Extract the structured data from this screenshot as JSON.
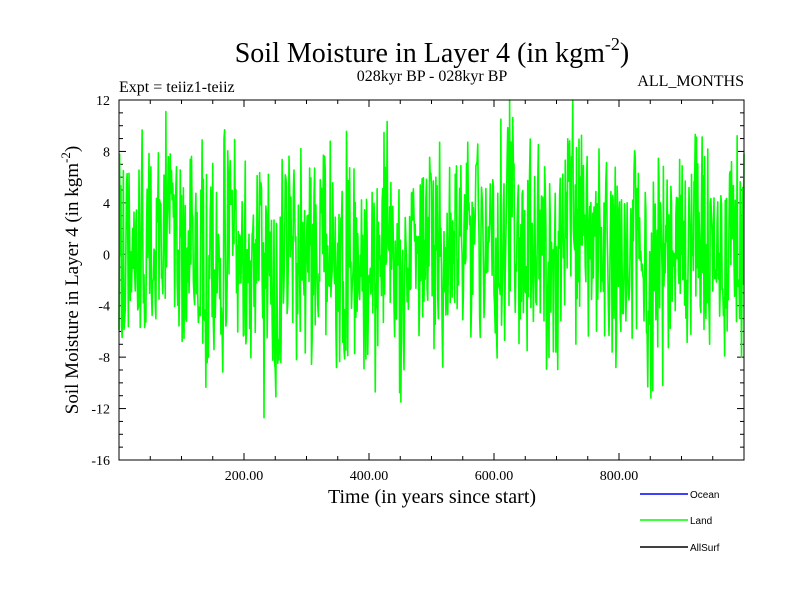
{
  "chart_data": {
    "type": "line",
    "title": "Soil Moisture in Layer 4 (in kgm",
    "title_superscript": "-2",
    "title_suffix": ")",
    "subtitle": "028kyr BP - 028kyr BP",
    "left_label": "Expt = teiiz1-teiiz",
    "right_label": "ALL_MONTHS",
    "xlabel": "Time (in years since start)",
    "ylabel": "Soil Moisture in Layer 4 (in kgm",
    "ylabel_superscript": "-2",
    "ylabel_suffix": ")",
    "xlim": [
      0,
      1000
    ],
    "ylim": [
      -16,
      12
    ],
    "x_ticks": [
      200,
      400,
      600,
      800
    ],
    "x_tick_labels": [
      "200.00",
      "400.00",
      "600.00",
      "800.00"
    ],
    "y_ticks": [
      -16,
      -12,
      -8,
      -4,
      0,
      4,
      8,
      12
    ],
    "y_tick_labels": [
      "-16",
      "-12",
      "-8",
      "-4",
      "0",
      "4",
      "8",
      "12"
    ],
    "grid": false,
    "legend_position": "bottom-right",
    "series": [
      {
        "name": "Ocean",
        "color": "#0000ff",
        "values": []
      },
      {
        "name": "Land",
        "color": "#00ff00",
        "x": [
          0,
          25,
          50,
          75,
          100,
          125,
          150,
          175,
          200,
          225,
          250,
          275,
          300,
          325,
          350,
          375,
          400,
          425,
          450,
          475,
          500,
          525,
          550,
          575,
          600,
          625,
          650,
          675,
          700,
          725,
          750,
          775,
          800,
          825,
          850,
          875,
          900,
          925,
          950,
          975,
          1000
        ],
        "y": [
          -2,
          5,
          -3,
          11,
          -6,
          3,
          -9,
          6,
          -4,
          4,
          -12.5,
          7,
          0,
          10,
          -8,
          5,
          -2,
          6,
          -10.5,
          4,
          6,
          -6,
          3,
          9,
          -5,
          12,
          -4,
          6,
          -7,
          11,
          -3,
          5,
          -8,
          3,
          -9,
          6,
          1,
          10,
          -6,
          7,
          2
        ]
      },
      {
        "name": "AllSurf",
        "color": "#000000",
        "values": []
      }
    ]
  }
}
